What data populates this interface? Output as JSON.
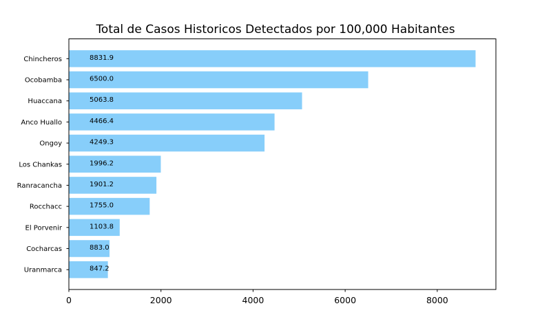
{
  "chart_data": {
    "type": "bar",
    "orientation": "horizontal",
    "title": "Total de Casos Historicos Detectados por 100,000 Habitantes",
    "xlabel": "",
    "ylabel": "",
    "categories": [
      "Chincheros",
      "Ocobamba",
      "Huaccana",
      "Anco Huallo",
      "Ongoy",
      "Los Chankas",
      "Ranracancha",
      "Rocchacc",
      "El Porvenir",
      "Cocharcas",
      "Uranmarca"
    ],
    "values": [
      8831.9,
      6500.0,
      5063.8,
      4466.4,
      4249.3,
      1996.2,
      1901.2,
      1755.0,
      1103.8,
      883.0,
      847.2
    ],
    "data_labels": [
      "8831.9",
      "6500.0",
      "5063.8",
      "4466.4",
      "4249.3",
      "1996.2",
      "1901.2",
      "1755.0",
      "1103.8",
      "883.0",
      "847.2"
    ],
    "xlim": [
      0,
      9273.5
    ],
    "xticks": [
      0,
      2000,
      4000,
      6000,
      8000
    ],
    "xtick_labels": [
      "0",
      "2000",
      "4000",
      "6000",
      "8000"
    ],
    "grid": false,
    "bar_color": "#87cefa"
  }
}
